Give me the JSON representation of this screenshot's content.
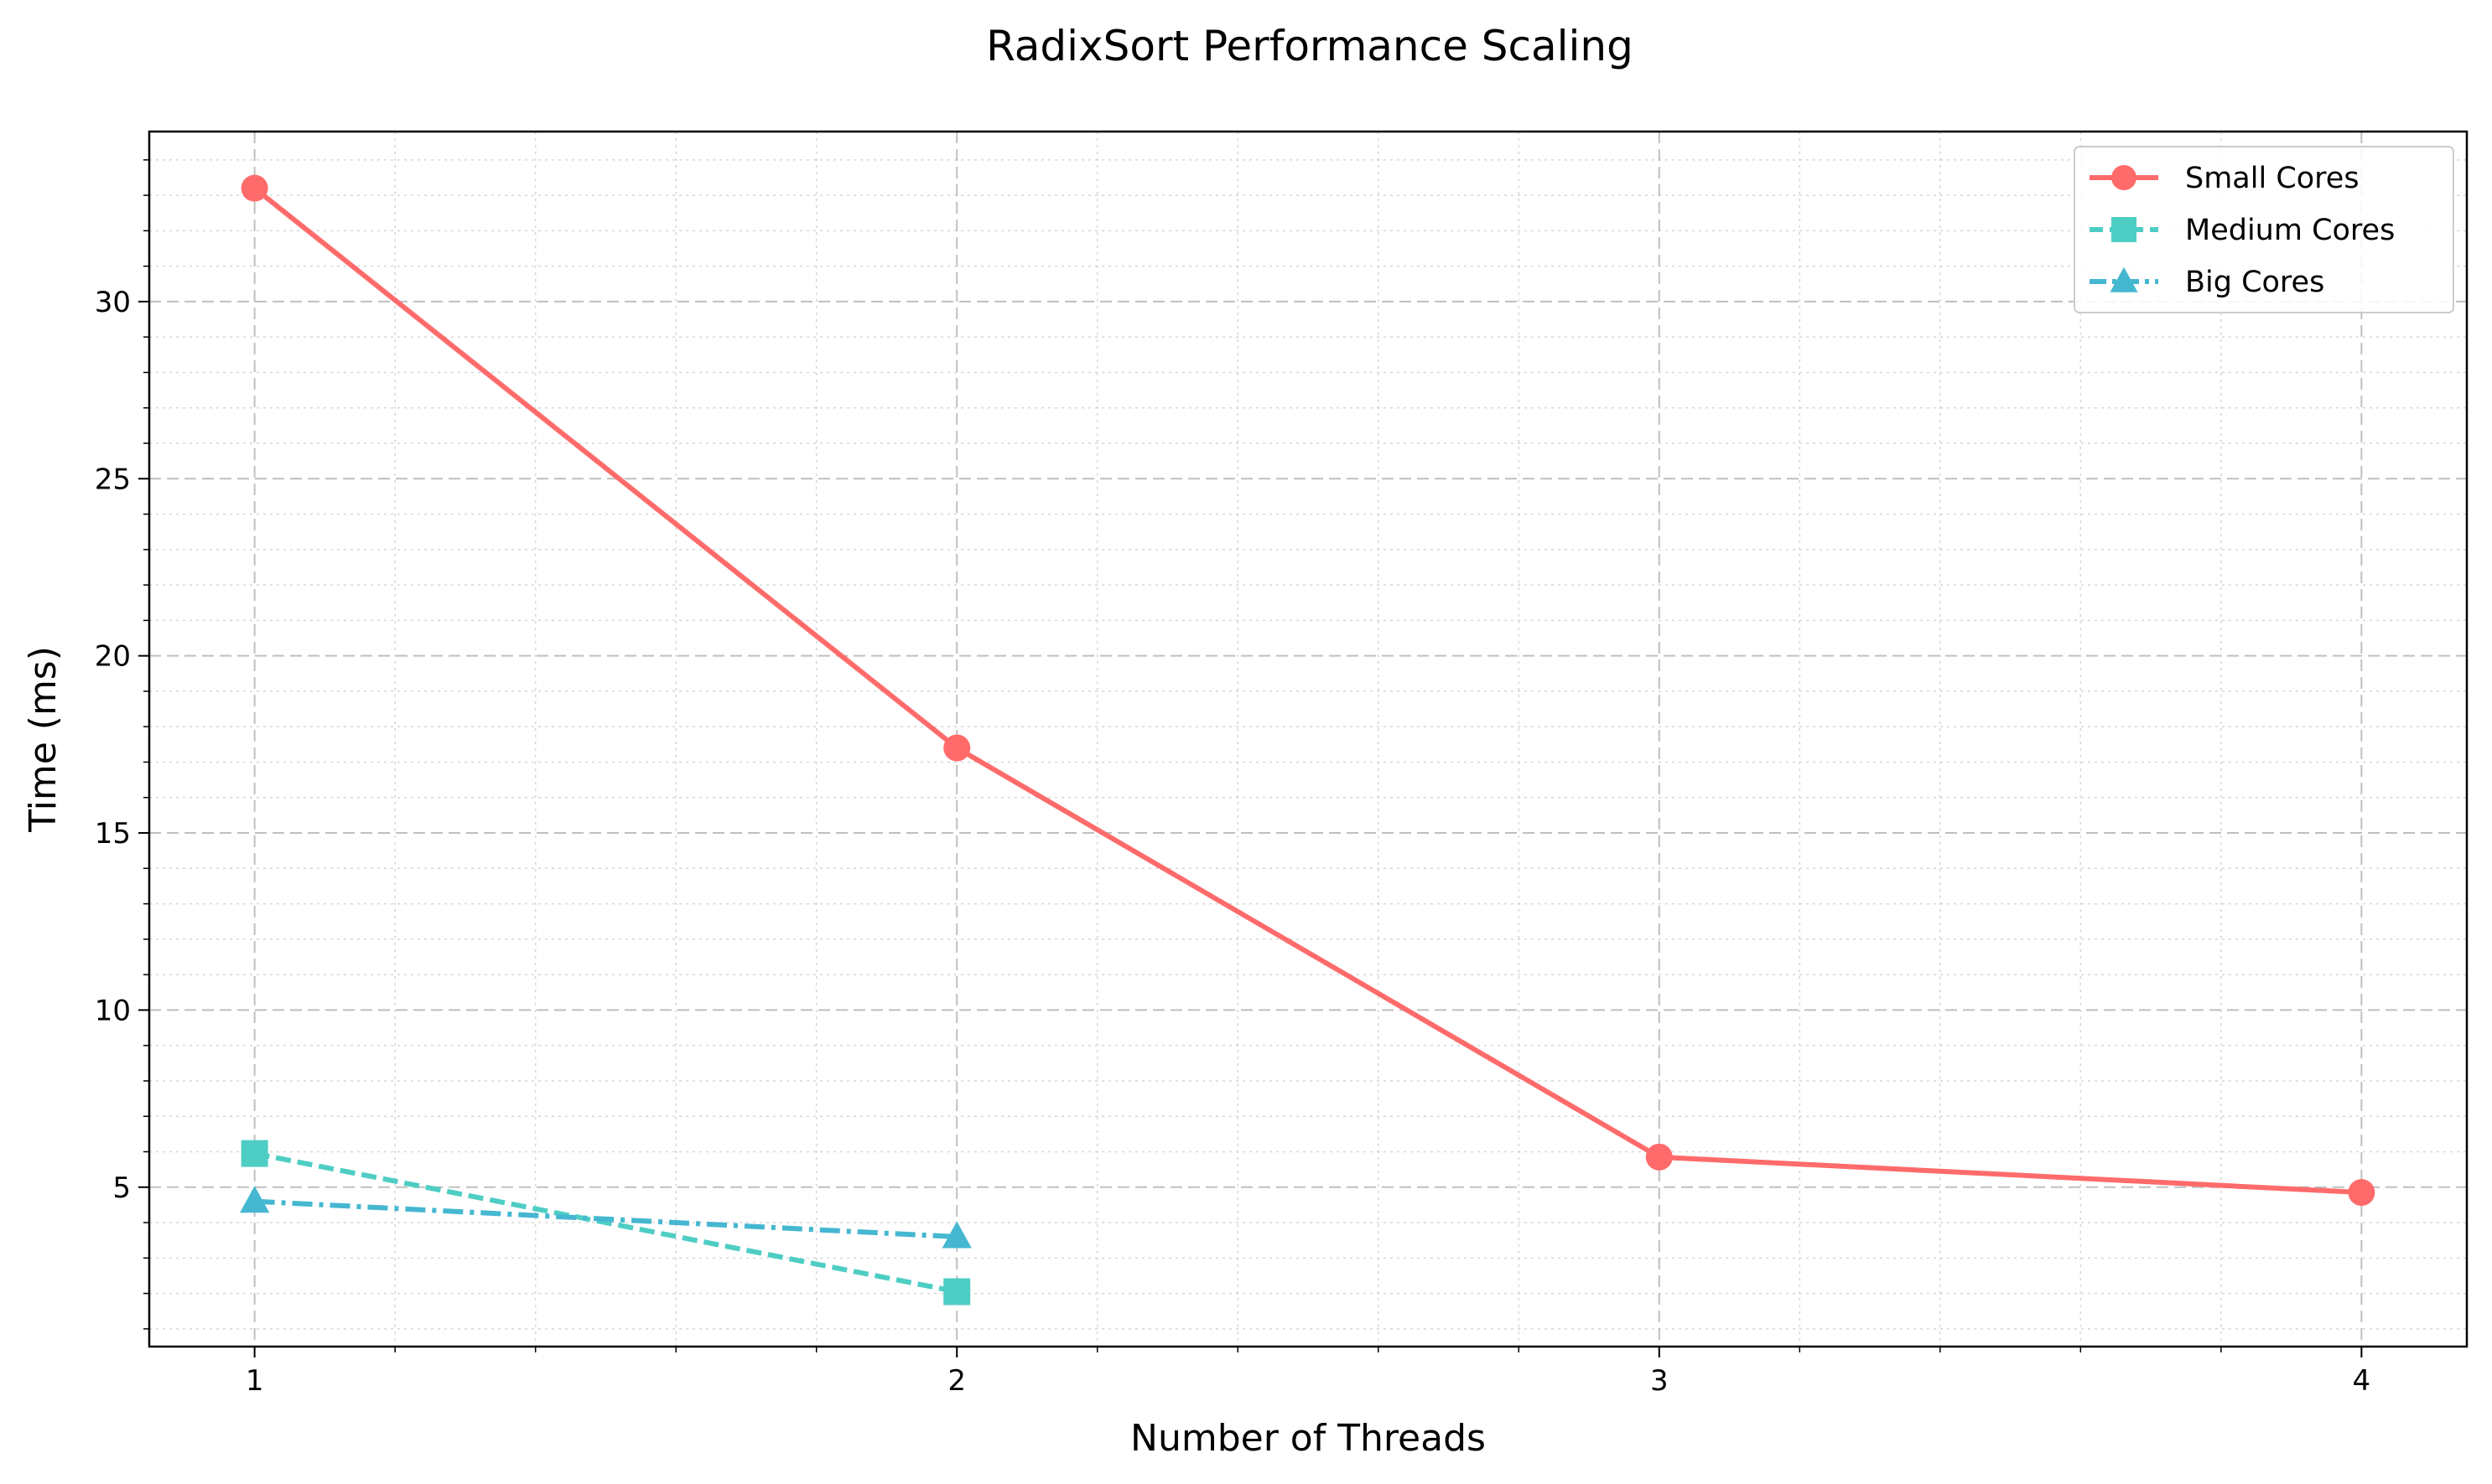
{
  "chart_data": {
    "type": "line",
    "title": "RadixSort Performance Scaling",
    "xlabel": "Number of Threads",
    "ylabel": "Time (ms)",
    "xlim": [
      0.85,
      4.15
    ],
    "ylim": [
      0.5,
      34.8
    ],
    "xticks": [
      1,
      2,
      3,
      4
    ],
    "yticks": [
      5,
      10,
      15,
      20,
      25,
      30
    ],
    "grid": true,
    "legend_position": "top-right",
    "series": [
      {
        "name": "Small Cores",
        "x": [
          1,
          2,
          3,
          4
        ],
        "y": [
          33.2,
          17.4,
          5.85,
          4.85
        ],
        "color": "#ff6b6b",
        "marker": "circle",
        "linestyle": "solid"
      },
      {
        "name": "Medium Cores",
        "x": [
          1,
          2
        ],
        "y": [
          5.95,
          2.05
        ],
        "color": "#4ecdc4",
        "marker": "square",
        "linestyle": "dashed"
      },
      {
        "name": "Big Cores",
        "x": [
          1,
          2
        ],
        "y": [
          4.6,
          3.6
        ],
        "color": "#45b7d1",
        "marker": "triangle",
        "linestyle": "dashdot"
      }
    ]
  }
}
